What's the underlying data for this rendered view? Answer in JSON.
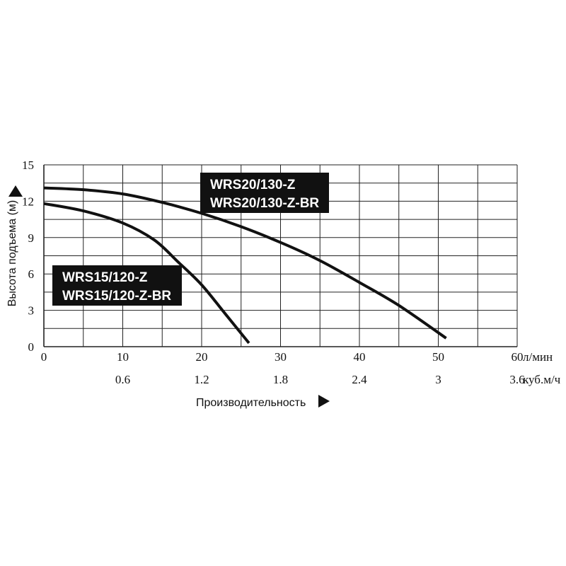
{
  "chart_data": {
    "type": "line",
    "x_primary": {
      "ticks": [
        0,
        10,
        20,
        30,
        40,
        50,
        60
      ],
      "unit": "л/мин",
      "range": [
        0,
        60
      ]
    },
    "x_secondary": {
      "ticks": [
        "0.6",
        "1.2",
        "1.8",
        "2.4",
        "3",
        "3.6"
      ],
      "unit": "куб.м/ч"
    },
    "y": {
      "ticks": [
        0,
        3,
        6,
        9,
        12,
        15
      ],
      "range": [
        0,
        15
      ]
    },
    "ylabel": "Высота подъема (м)",
    "xlabel": "Производительность",
    "grid": true,
    "series": [
      {
        "name": "WRS20/130-Z",
        "name2": "WRS20/130-Z-BR",
        "points": [
          [
            0,
            13.1
          ],
          [
            5,
            12.95
          ],
          [
            10,
            12.6
          ],
          [
            15,
            11.9
          ],
          [
            20,
            11.0
          ],
          [
            25,
            9.9
          ],
          [
            30,
            8.6
          ],
          [
            35,
            7.1
          ],
          [
            40,
            5.3
          ],
          [
            45,
            3.4
          ],
          [
            51,
            0.7
          ]
        ]
      },
      {
        "name": "WRS15/120-Z",
        "name2": "WRS15/120-Z-BR",
        "points": [
          [
            0,
            11.8
          ],
          [
            5,
            11.2
          ],
          [
            10,
            10.2
          ],
          [
            14,
            8.8
          ],
          [
            17,
            7.0
          ],
          [
            20,
            5.1
          ],
          [
            23,
            2.7
          ],
          [
            26,
            0.3
          ]
        ]
      }
    ]
  }
}
